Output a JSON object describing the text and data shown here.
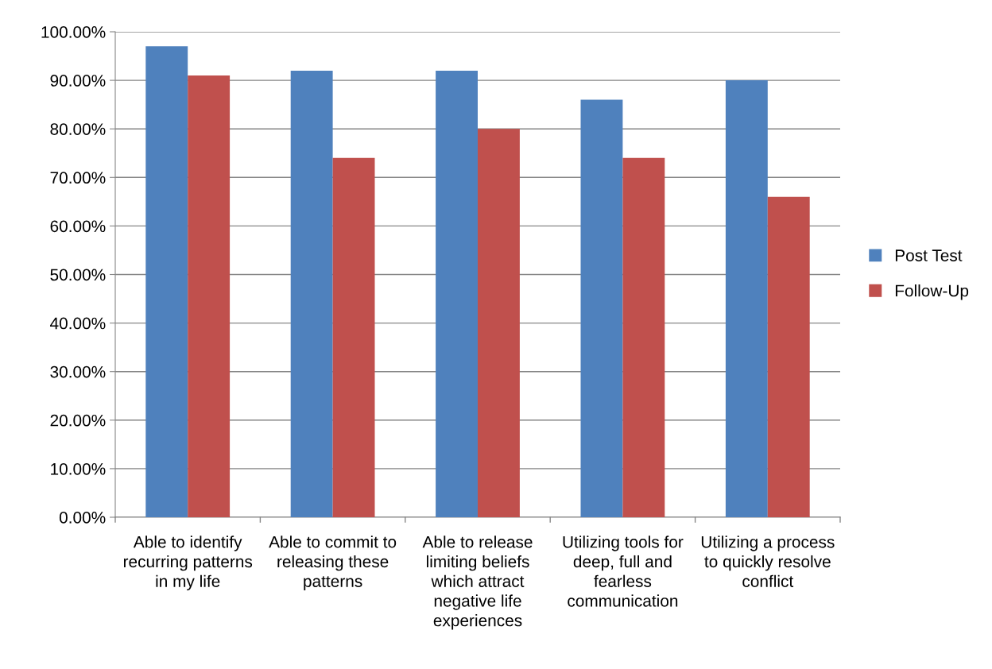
{
  "chart_data": {
    "type": "bar",
    "categories": [
      "Able to identify recurring patterns in my life",
      "Able to commit to releasing these patterns",
      "Able to release limiting beliefs which attract negative life experiences",
      "Utilizing tools for deep, full and fearless communication",
      "Utilizing a process to quickly resolve conflict"
    ],
    "series": [
      {
        "name": "Post Test",
        "color": "#4f81bd",
        "values": [
          97,
          92,
          92,
          86,
          90
        ]
      },
      {
        "name": "Follow-Up",
        "color": "#c0504d",
        "values": [
          91,
          74,
          80,
          74,
          66
        ]
      }
    ],
    "ylim": [
      0,
      100
    ],
    "yticks": [
      {
        "value": 0,
        "label": "0.00%"
      },
      {
        "value": 10,
        "label": "10.00%"
      },
      {
        "value": 20,
        "label": "20.00%"
      },
      {
        "value": 30,
        "label": "30.00%"
      },
      {
        "value": 40,
        "label": "40.00%"
      },
      {
        "value": 50,
        "label": "50.00%"
      },
      {
        "value": 60,
        "label": "60.00%"
      },
      {
        "value": 70,
        "label": "70.00%"
      },
      {
        "value": 80,
        "label": "80.00%"
      },
      {
        "value": 90,
        "label": "90.00%"
      },
      {
        "value": 100,
        "label": "100.00%"
      }
    ],
    "grid": "y",
    "legend": "right"
  }
}
